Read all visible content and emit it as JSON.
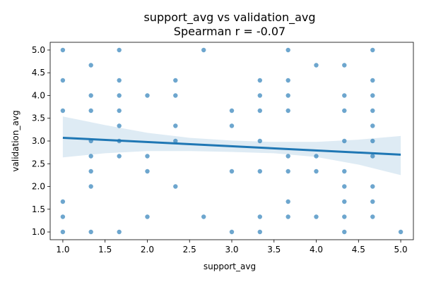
{
  "chart_data": {
    "type": "scatter",
    "title": "support_avg vs validation_avg",
    "subtitle": "Spearman r = -0.07",
    "xlabel": "support_avg",
    "ylabel": "validation_avg",
    "xlim": [
      0.85,
      5.15
    ],
    "ylim": [
      0.83,
      5.17
    ],
    "xticks": [
      "1.0",
      "1.5",
      "2.0",
      "2.5",
      "3.0",
      "3.5",
      "4.0",
      "4.5",
      "5.0"
    ],
    "yticks": [
      "1.0",
      "1.5",
      "2.0",
      "2.5",
      "3.0",
      "3.5",
      "4.0",
      "4.5",
      "5.0"
    ],
    "grid": false,
    "colors": {
      "points": "#1f77b4",
      "line": "#1f77b4",
      "band": "#1f77b4"
    },
    "points": [
      [
        1.0,
        5.0
      ],
      [
        1.0,
        4.333
      ],
      [
        1.0,
        3.667
      ],
      [
        1.0,
        1.667
      ],
      [
        1.0,
        1.333
      ],
      [
        1.0,
        1.0
      ],
      [
        1.333,
        4.667
      ],
      [
        1.333,
        4.0
      ],
      [
        1.333,
        3.667
      ],
      [
        1.333,
        3.0
      ],
      [
        1.333,
        2.667
      ],
      [
        1.333,
        2.333
      ],
      [
        1.333,
        2.0
      ],
      [
        1.333,
        1.0
      ],
      [
        1.667,
        5.0
      ],
      [
        1.667,
        4.333
      ],
      [
        1.667,
        4.0
      ],
      [
        1.667,
        3.667
      ],
      [
        1.667,
        3.333
      ],
      [
        1.667,
        3.0
      ],
      [
        1.667,
        2.667
      ],
      [
        1.667,
        1.0
      ],
      [
        2.0,
        4.0
      ],
      [
        2.0,
        2.667
      ],
      [
        2.0,
        2.333
      ],
      [
        2.0,
        1.333
      ],
      [
        2.333,
        4.333
      ],
      [
        2.333,
        4.0
      ],
      [
        2.333,
        3.333
      ],
      [
        2.333,
        3.0
      ],
      [
        2.333,
        2.0
      ],
      [
        2.667,
        5.0
      ],
      [
        2.667,
        1.333
      ],
      [
        3.0,
        3.667
      ],
      [
        3.0,
        3.333
      ],
      [
        3.0,
        2.333
      ],
      [
        3.0,
        1.0
      ],
      [
        3.333,
        4.333
      ],
      [
        3.333,
        4.0
      ],
      [
        3.333,
        3.667
      ],
      [
        3.333,
        3.0
      ],
      [
        3.333,
        2.333
      ],
      [
        3.333,
        1.333
      ],
      [
        3.333,
        1.0
      ],
      [
        3.667,
        5.0
      ],
      [
        3.667,
        4.333
      ],
      [
        3.667,
        4.0
      ],
      [
        3.667,
        3.667
      ],
      [
        3.667,
        2.667
      ],
      [
        3.667,
        2.333
      ],
      [
        3.667,
        1.667
      ],
      [
        3.667,
        1.333
      ],
      [
        4.0,
        4.667
      ],
      [
        4.0,
        2.667
      ],
      [
        4.0,
        2.333
      ],
      [
        4.0,
        1.333
      ],
      [
        4.333,
        4.667
      ],
      [
        4.333,
        4.0
      ],
      [
        4.333,
        3.667
      ],
      [
        4.333,
        3.0
      ],
      [
        4.333,
        2.333
      ],
      [
        4.333,
        2.0
      ],
      [
        4.333,
        1.667
      ],
      [
        4.333,
        1.333
      ],
      [
        4.333,
        1.0
      ],
      [
        4.667,
        5.0
      ],
      [
        4.667,
        4.333
      ],
      [
        4.667,
        4.0
      ],
      [
        4.667,
        3.667
      ],
      [
        4.667,
        3.333
      ],
      [
        4.667,
        3.0
      ],
      [
        4.667,
        2.667
      ],
      [
        4.667,
        2.0
      ],
      [
        4.667,
        1.667
      ],
      [
        4.667,
        1.333
      ],
      [
        5.0,
        1.0
      ]
    ],
    "regression": {
      "x": [
        1.0,
        5.0
      ],
      "y": [
        3.07,
        2.7
      ]
    },
    "ci_band": {
      "x": [
        1.0,
        1.5,
        2.0,
        2.5,
        3.0,
        3.5,
        4.0,
        4.5,
        5.0
      ],
      "upper": [
        3.54,
        3.35,
        3.18,
        3.07,
        3.01,
        2.98,
        2.98,
        3.03,
        3.11
      ],
      "lower": [
        2.64,
        2.73,
        2.78,
        2.78,
        2.76,
        2.73,
        2.65,
        2.48,
        2.25
      ]
    }
  }
}
